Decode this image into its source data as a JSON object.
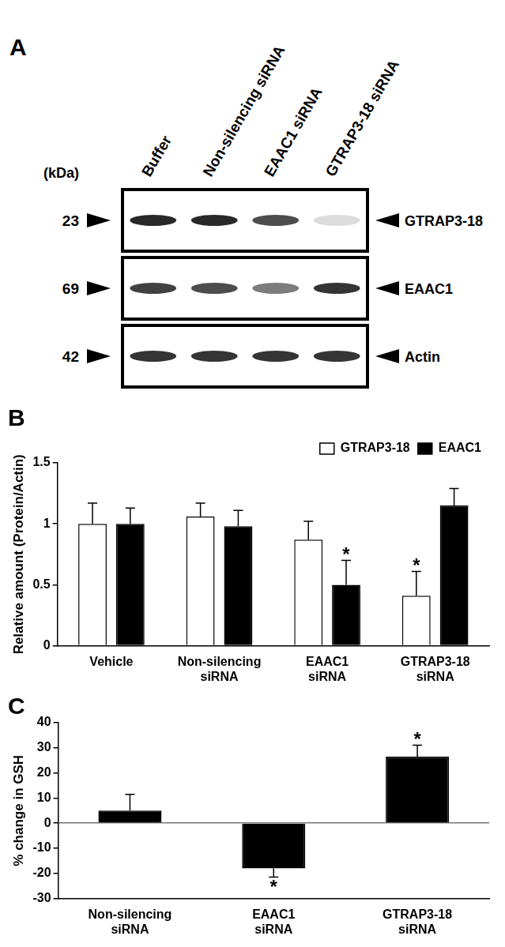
{
  "blot": {
    "panel_label": "A",
    "unit_label": "(kDa)",
    "lanes": [
      "Buffer",
      "Non-silencing siRNA",
      "EAAC1 siRNA",
      "GTRAP3-18 siRNA"
    ],
    "rows": [
      {
        "name": "GTRAP3-18",
        "kda": 23,
        "intensity": [
          0.9,
          0.9,
          0.75,
          0.15
        ]
      },
      {
        "name": "EAAC1",
        "kda": 69,
        "intensity": [
          0.8,
          0.75,
          0.55,
          0.85
        ]
      },
      {
        "name": "Actin",
        "kda": 42,
        "intensity": [
          0.85,
          0.85,
          0.85,
          0.85
        ]
      }
    ]
  },
  "chart_data": [
    {
      "type": "bar",
      "panel_label": "B",
      "y_label": "Relative amount (Protein/Actin)",
      "categories": [
        "Vehicle",
        "Non-silencing siRNA",
        "EAAC1 siRNA",
        "GTRAP3-18 siRNA"
      ],
      "series": [
        {
          "name": "GTRAP3-18",
          "color": "#ffffff",
          "values": [
            1.0,
            1.06,
            0.87,
            0.41
          ],
          "errors": [
            0.17,
            0.11,
            0.15,
            0.2
          ],
          "significance": [
            null,
            null,
            null,
            "*"
          ]
        },
        {
          "name": "EAAC1",
          "color": "#000000",
          "values": [
            1.0,
            0.98,
            0.5,
            1.15
          ],
          "errors": [
            0.13,
            0.13,
            0.2,
            0.14
          ],
          "significance": [
            null,
            null,
            "*",
            null
          ]
        }
      ],
      "ylim": [
        0,
        1.5
      ],
      "yticks": [
        0,
        0.5,
        1,
        1.5
      ],
      "grid": false,
      "legend": "top right"
    },
    {
      "type": "bar",
      "panel_label": "C",
      "y_label": "% change in GSH",
      "categories": [
        "Non-silencing siRNA",
        "EAAC1 siRNA",
        "GTRAP3-18 siRNA"
      ],
      "values": [
        5,
        -18,
        26.5
      ],
      "errors": [
        6.5,
        3.5,
        4.5
      ],
      "significance": [
        null,
        "*",
        "*"
      ],
      "color": "#000000",
      "ylim": [
        -30,
        40
      ],
      "yticks": [
        -30,
        -20,
        -10,
        0,
        10,
        20,
        30,
        40
      ],
      "grid": false
    }
  ]
}
